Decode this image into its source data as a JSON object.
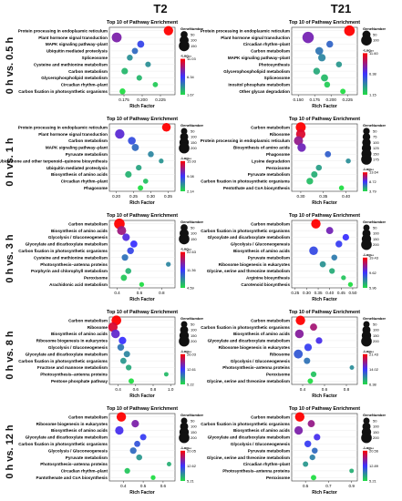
{
  "columns": [
    "T2",
    "T21"
  ],
  "rows": [
    "0 h vs. 0.5 h",
    "0 h vs. 1 h",
    "0 h vs. 3 h",
    "0 h vs. 8 h",
    "0 h vs. 12 h"
  ],
  "common": {
    "title": "Top 10 of Pathway Enrichment",
    "xlabel": "Rich Factor",
    "size_legend_title": "GeneNumber",
    "color_legend_title": "-Log₁₀",
    "colors": {
      "high": "#ff0000",
      "mid": "#3b33ff",
      "low": "#22dd44"
    }
  },
  "chart_data": [
    {
      "type": "scatter",
      "row": "0 h vs. 0.5 h",
      "column": "T2",
      "title": "Top 10 of Pathway Enrichment",
      "xlabel": "Rich Factor",
      "xticks": [
        "0.175",
        "0.200",
        "0.225"
      ],
      "xlim": [
        0.155,
        0.245
      ],
      "categories": [
        "Protein processing in endoplasmic reticulum",
        "Plant hormone signal transduction",
        "MAPK signaling pathway–plant",
        "Ubiquitin mediated proteolysis",
        "Spliceosome",
        "Cysteine and methionine metabolism",
        "Carbon metabolism",
        "Glycerophospholipid metabolism",
        "Circadian rhythm–plant",
        "Carbon fixation in photosynthetic organisms"
      ],
      "x": [
        0.236,
        0.165,
        0.198,
        0.19,
        0.183,
        0.208,
        0.176,
        0.196,
        0.218,
        0.173
      ],
      "size": [
        110,
        125,
        50,
        35,
        30,
        25,
        40,
        25,
        20,
        30
      ],
      "color": [
        11,
        8,
        6,
        5,
        4,
        4,
        3,
        3,
        2.5,
        2
      ],
      "size_legend": {
        "title": "GeneNumber",
        "values": [
          50,
          100,
          150
        ]
      },
      "color_legend": {
        "title": "-Log₁₀",
        "ticks": [
          "11.03",
          "6.34",
          "1.67"
        ]
      }
    },
    {
      "type": "scatter",
      "row": "0 h vs. 0.5 h",
      "column": "T21",
      "title": "Top 10 of Pathway Enrichment",
      "xlabel": "Rich Factor",
      "xticks": [
        "0.150",
        "0.175",
        "0.200",
        "0.225"
      ],
      "xlim": [
        0.14,
        0.24
      ],
      "categories": [
        "Protein processing in endoplasmic reticulum",
        "Plant hormone signal transduction",
        "Circadian rhythm–plant",
        "Carbon metabolism",
        "MAPK signaling pathway–plant",
        "Photosynthesis",
        "Glycerophospholipid metabolism",
        "Spliceosome",
        "Inositol phosphate metabolism",
        "Other glycan degradation"
      ],
      "x": [
        0.228,
        0.165,
        0.198,
        0.182,
        0.186,
        0.212,
        0.178,
        0.19,
        0.194,
        0.218
      ],
      "size": [
        100,
        120,
        30,
        45,
        40,
        20,
        30,
        35,
        20,
        15
      ],
      "color": [
        11.5,
        8,
        5,
        4.5,
        4,
        3.5,
        3,
        2.5,
        2,
        1.5
      ],
      "size_legend": {
        "title": "GeneNumber",
        "values": [
          50,
          100
        ]
      },
      "color_legend": {
        "title": "-Log₁₀",
        "ticks": [
          "11.60",
          "6.38",
          "1.15"
        ]
      }
    },
    {
      "type": "scatter",
      "row": "0 h vs. 1 h",
      "column": "T2",
      "title": "Top 10 of Pathway Enrichment",
      "xlabel": "Rich Factor",
      "xticks": [
        "0.20",
        "0.25",
        "0.30",
        "0.35"
      ],
      "xlim": [
        0.18,
        0.37
      ],
      "categories": [
        "Protein processing in endoplasmic reticulum",
        "Plant hormone signal transduction",
        "Carbon metabolism",
        "MAPK signaling pathway–plant",
        "Pyruvate metabolism",
        "Ubiquinone and other terpenoid–quinone biosynthesis",
        "Ubiquitin mediated proteolysis",
        "Biosynthesis of amino acids",
        "Circadian rhythm–plant",
        "Phagosome"
      ],
      "x": [
        0.345,
        0.21,
        0.245,
        0.255,
        0.3,
        0.33,
        0.265,
        0.235,
        0.285,
        0.27
      ],
      "size": [
        120,
        150,
        90,
        70,
        40,
        20,
        35,
        55,
        25,
        30
      ],
      "color": [
        14,
        9,
        7,
        6,
        5,
        4.5,
        4,
        3.5,
        3,
        2
      ],
      "size_legend": {
        "title": "GeneNumber",
        "values": [
          50,
          100,
          150,
          200
        ]
      },
      "color_legend": {
        "title": "-Log₁₀",
        "ticks": [
          "15.93",
          "9.08",
          "2.14"
        ]
      }
    },
    {
      "type": "scatter",
      "row": "0 h vs. 1 h",
      "column": "T21",
      "title": "Top 10 of Pathway Enrichment",
      "xlabel": "Rich Factor",
      "xticks": [
        "0.30",
        "0.35",
        "0.40"
      ],
      "xlim": [
        0.28,
        0.425
      ],
      "categories": [
        "Carbon metabolism",
        "Ribosome",
        "Protein processing in endoplasmic reticulum",
        "Biosynthesis of amino acids",
        "Phagosome",
        "Lysine degradation",
        "Peroxisome",
        "Pyruvate metabolism",
        "Carbon fixation in photosynthetic organisms",
        "Pentothate and CoA biosynthesis"
      ],
      "x": [
        0.3,
        0.3,
        0.295,
        0.302,
        0.36,
        0.405,
        0.34,
        0.33,
        0.32,
        0.39
      ],
      "size": [
        150,
        130,
        120,
        100,
        40,
        20,
        35,
        45,
        50,
        20
      ],
      "color": [
        13,
        12,
        10,
        9,
        6,
        4.5,
        4,
        3.5,
        3,
        2
      ],
      "size_legend": {
        "title": "GeneNumber",
        "values": [
          50,
          75,
          100,
          125,
          150,
          175
        ]
      },
      "color_legend": {
        "title": "-Log₁₀",
        "ticks": [
          "13.64",
          "8.72",
          "3.79"
        ]
      }
    },
    {
      "type": "scatter",
      "row": "0 h vs. 3 h",
      "column": "T2",
      "title": "Top 10 of Pathway Enrichment",
      "xlabel": "Rich Factor",
      "xticks": [
        "0.4",
        "0.6",
        "0.8"
      ],
      "xlim": [
        0.33,
        0.92
      ],
      "categories": [
        "Carbon metabolism",
        "Biosynthesis of amino acids",
        "Glycolysis / Gluconeogenesis",
        "Glyoxylate and dicarboxylate metabolism",
        "Carbon fixation in photosynthetic organisms",
        "Cysteine and methionine metabolism",
        "Photosynthesis–antenna proteins",
        "Porphyrin and chlorophyll metabolism",
        "Peroxisome",
        "Arachidonic acid metabolism"
      ],
      "x": [
        0.42,
        0.44,
        0.48,
        0.55,
        0.52,
        0.47,
        0.86,
        0.5,
        0.46,
        0.62
      ],
      "size": [
        150,
        100,
        60,
        50,
        45,
        40,
        15,
        30,
        35,
        15
      ],
      "color": [
        22,
        18,
        15,
        14,
        13,
        11,
        10,
        8,
        7,
        6
      ],
      "size_legend": {
        "title": "GeneNumber",
        "values": [
          50,
          100,
          150
        ]
      },
      "color_legend": {
        "title": "-Log₁₀",
        "ticks": [
          "22.63",
          "11.36",
          "4.59"
        ]
      }
    },
    {
      "type": "scatter",
      "row": "0 h vs. 3 h",
      "column": "T21",
      "title": "Top 10 of Pathway Enrichment",
      "xlabel": "Rich Factor",
      "xticks": [
        "0.25",
        "0.30",
        "0.35",
        "0.40",
        "0.45",
        "0.50"
      ],
      "xlim": [
        0.235,
        0.52
      ],
      "categories": [
        "Carbon metabolism",
        "Carbon fixation in photosynthetic organisms",
        "Glyoxylate and dicarboxylate metabolism",
        "Glycolysis / Gluconeogenesis",
        "Biosynthesis of amino acids",
        "Pyruvate metabolism",
        "Ribosome biogenesis in eukaryotes",
        "Glycine, serine and threonine metabolism",
        "Arginine biosynthesis",
        "Carotenoid biosynthesis"
      ],
      "x": [
        0.34,
        0.4,
        0.47,
        0.44,
        0.33,
        0.42,
        0.37,
        0.41,
        0.46,
        0.49
      ],
      "size": [
        150,
        70,
        55,
        60,
        120,
        40,
        45,
        35,
        20,
        20
      ],
      "color": [
        19,
        14,
        12,
        11.5,
        11,
        9,
        8,
        7,
        6,
        5
      ],
      "size_legend": {
        "title": "GeneNumber",
        "values": [
          50,
          100,
          150,
          200
        ]
      },
      "color_legend": {
        "title": "-Log₁₀",
        "ticks": [
          "19.43",
          "9.62",
          "5.96"
        ]
      }
    },
    {
      "type": "scatter",
      "row": "0 h vs. 8 h",
      "column": "T2",
      "title": "Top 10 of Pathway Enrichment",
      "xlabel": "Rich Factor",
      "xticks": [
        "0.4",
        "0.6",
        "0.8",
        "1.0"
      ],
      "xlim": [
        0.3,
        1.05
      ],
      "categories": [
        "Carbon metabolism",
        "Ribosome",
        "Biosynthesis of amino acids",
        "Ribosome biogenesis in eukaryotes",
        "Glycolysis / Gluconeogenesis",
        "Glyoxylate and dicarboxylate metabolism",
        "Carbon fixation in photosynthetic organisms",
        "Fructose and mannose metabolism",
        "Photosynthesis–antenna proteins",
        "Pentose phosphate pathway"
      ],
      "x": [
        0.38,
        0.34,
        0.37,
        0.45,
        0.43,
        0.5,
        0.46,
        0.52,
        0.95,
        0.55
      ],
      "size": [
        160,
        150,
        120,
        80,
        60,
        50,
        45,
        35,
        15,
        30
      ],
      "color": [
        26,
        24,
        18,
        16,
        12,
        11,
        10,
        9,
        8,
        6
      ],
      "size_legend": {
        "title": "GeneNumber",
        "values": [
          50,
          100,
          150,
          200
        ]
      },
      "color_legend": {
        "title": "-Log₁₀",
        "ticks": [
          "26.03",
          "12.61",
          "5.22"
        ]
      }
    },
    {
      "type": "scatter",
      "row": "0 h vs. 8 h",
      "column": "T21",
      "title": "Top 10 of Pathway Enrichment",
      "xlabel": "Rich Factor",
      "xticks": [
        "0.4",
        "0.6",
        "0.8"
      ],
      "xlim": [
        0.3,
        0.9
      ],
      "categories": [
        "Carbon metabolism",
        "Carbon fixation in photosynthetic organisms",
        "Biosynthesis of amino acids",
        "Glyoxylate and dicarboxylate metabolism",
        "Ribosome biogenesis in eukaryotes",
        "Ribosome",
        "Glycolysis / Gluconeogenesis",
        "Photosynthesis–antenna proteins",
        "Peroxisome",
        "Glycine, serine and threonine metabolism"
      ],
      "x": [
        0.38,
        0.5,
        0.37,
        0.55,
        0.45,
        0.36,
        0.44,
        0.85,
        0.5,
        0.47
      ],
      "size": [
        150,
        70,
        120,
        55,
        80,
        130,
        50,
        15,
        35,
        30
      ],
      "color": [
        21,
        18,
        17,
        15,
        14,
        13,
        12,
        11,
        9,
        8
      ],
      "size_legend": {
        "title": "GeneNumber",
        "values": [
          50,
          100,
          150,
          200
        ]
      },
      "color_legend": {
        "title": "-Log₁₀",
        "ticks": [
          "21.43",
          "14.02",
          "6.38"
        ]
      }
    },
    {
      "type": "scatter",
      "row": "0 h vs. 12 h",
      "column": "T2",
      "title": "Top 10 of Pathway Enrichment",
      "xlabel": "Rich Factor",
      "xticks": [
        "0.4",
        "0.5",
        "0.6"
      ],
      "xlim": [
        0.33,
        0.66
      ],
      "categories": [
        "Carbon metabolism",
        "Ribosome biogenesis in eukaryotes",
        "Biosynthesis of amino acids",
        "Glyoxylate and dicarboxylate metabolism",
        "Carbon fixation in photosynthetic organisms",
        "Glycolysis / Gluconeogenesis",
        "Pyruvate metabolism",
        "Photosynthesis–antenna proteins",
        "Circadian rhythm–plant",
        "Pantothenate and CoA biosynthesis"
      ],
      "x": [
        0.39,
        0.46,
        0.38,
        0.5,
        0.47,
        0.45,
        0.48,
        0.63,
        0.42,
        0.55
      ],
      "size": [
        150,
        80,
        110,
        50,
        45,
        55,
        40,
        15,
        35,
        20
      ],
      "color": [
        20,
        15,
        13,
        12,
        11,
        10,
        8,
        7,
        6,
        5
      ],
      "size_legend": {
        "title": "GeneNumber",
        "values": [
          50,
          100,
          150,
          200
        ]
      },
      "color_legend": {
        "title": "-Log₁₀",
        "ticks": [
          "20.05",
          "12.62",
          "5.21"
        ]
      }
    },
    {
      "type": "scatter",
      "row": "0 h vs. 12 h",
      "column": "T21",
      "title": "Top 10 of Pathway Enrichment",
      "xlabel": "Rich Factor",
      "xticks": [
        "0.5",
        "0.7",
        "0.9"
      ],
      "xlim": [
        0.38,
        0.95
      ],
      "categories": [
        "Carbon metabolism",
        "Carbon fixation in photosynthetic organisms",
        "Biosynthesis of amino acids",
        "Glyoxylate and dicarboxylate metabolism",
        "Glycolysis / Gluconeogenesis",
        "Pyruvate metabolism",
        "Glycine, serine and threonine metabolism",
        "Circadian rhythm–plant",
        "Photosynthesis–antenna proteins",
        "Peroxisome"
      ],
      "x": [
        0.45,
        0.55,
        0.44,
        0.6,
        0.52,
        0.58,
        0.56,
        0.5,
        0.9,
        0.57
      ],
      "size": [
        150,
        70,
        110,
        55,
        60,
        40,
        35,
        30,
        15,
        30
      ],
      "color": [
        20,
        16,
        15,
        13,
        12,
        10,
        9,
        8,
        7,
        5
      ],
      "size_legend": {
        "title": "GeneNumber",
        "values": [
          50,
          100,
          150,
          200
        ]
      },
      "color_legend": {
        "title": "-Log₁₀",
        "ticks": [
          "20.56",
          "12.89",
          "5.21"
        ]
      }
    }
  ]
}
